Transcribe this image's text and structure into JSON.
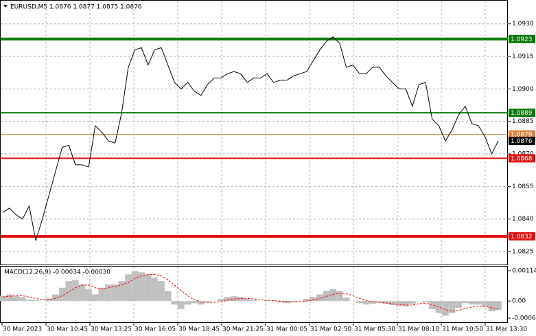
{
  "chart_data": [
    {
      "type": "line",
      "title": "EURUSD,M5  1.0876 1.0877 1.0875 1.0876",
      "color": "#000000",
      "values": [
        1.0843,
        1.0845,
        1.0842,
        1.084,
        1.0846,
        1.083,
        1.084,
        1.0851,
        1.0862,
        1.0873,
        1.0874,
        1.0865,
        1.0865,
        1.0864,
        1.0883,
        1.088,
        1.0876,
        1.0875,
        1.0889,
        1.091,
        1.0918,
        1.0919,
        1.0911,
        1.0918,
        1.0919,
        1.0911,
        1.0903,
        1.09,
        1.0903,
        1.0899,
        1.0897,
        1.0902,
        1.0905,
        1.0905,
        1.0907,
        1.0908,
        1.0907,
        1.0903,
        1.0905,
        1.0905,
        1.0907,
        1.0903,
        1.0904,
        1.0904,
        1.0906,
        1.0907,
        1.0908,
        1.0913,
        1.0918,
        1.0922,
        1.0924,
        1.0921,
        1.091,
        1.0911,
        1.0907,
        1.0907,
        1.091,
        1.091,
        1.0906,
        1.0903,
        1.09,
        1.09,
        1.0892,
        1.0902,
        1.0903,
        1.0886,
        1.0883,
        1.0876,
        1.0881,
        1.0888,
        1.0892,
        1.0884,
        1.0883,
        1.0878,
        1.087,
        1.0876
      ],
      "ylim": [
        1.0819,
        1.0941
      ],
      "yticks": [
        {
          "value": 1.093,
          "label": "1.0930"
        },
        1.0915,
        {
          "value": 1.09,
          "label": "1.0900"
        },
        1.0885,
        {
          "value": 1.087,
          "label": "1.0870"
        },
        1.0855,
        {
          "value": 1.084,
          "label": "1.0840"
        },
        1.0825
      ],
      "grid": true,
      "levels": [
        {
          "value": 1.0923,
          "color": "#0b7a0b",
          "width": 4
        },
        {
          "value": 1.0889,
          "color": "#0b7a0b",
          "width": 2
        },
        {
          "value": 1.0879,
          "color": "#e0803c",
          "width": 1
        },
        {
          "value": 1.0868,
          "color": "#e01010",
          "width": 2
        },
        {
          "value": 1.0832,
          "color": "#e01010",
          "width": 4
        }
      ],
      "last_price": 1.0876
    },
    {
      "type": "bar",
      "title": "MACD(12,26,9) -0.00034 -0.00030",
      "series": [
        {
          "color": "#c0c0c0",
          "values": [
            0.0002,
            0.00025,
            0.0002,
            0.00015,
            5e-05,
            3e-05,
            0,
            0.0001,
            0.00025,
            0.0005,
            0.00075,
            0.0008,
            0.00063,
            0.00045,
            0.00025,
            0.0005,
            0.00063,
            0.00063,
            0.00075,
            0.001,
            0.00113,
            0.00108,
            0.001,
            0.00088,
            0.00075,
            0.00038,
            -0.00013,
            -0.0003,
            -0.00013,
            -8e-05,
            -0.00013,
            -5e-05,
            0,
            8e-05,
            0.00015,
            0.00018,
            0.00015,
            8e-05,
            3e-05,
            0,
            3e-05,
            0,
            -5e-05,
            -8e-05,
            -5e-05,
            0,
            8e-05,
            0.00015,
            0.00025,
            0.00038,
            0.00045,
            0.00038,
            0.00013,
            0,
            -8e-05,
            -0.00013,
            -0.0001,
            -5e-05,
            -0.0001,
            -0.00015,
            -0.0002,
            -0.0002,
            -0.0001,
            0,
            -5e-05,
            -0.0003,
            -0.00045,
            -0.00055,
            -0.00045,
            -0.00025,
            -8e-05,
            -0.00013,
            -0.00013,
            -0.0002,
            -0.00038,
            -0.00034
          ]
        },
        {
          "color": "#ff0000",
          "type": "line",
          "values": [
            0.00015,
            0.00018,
            0.0002,
            0.0002,
            0.00015,
            0.0001,
            5e-05,
            5e-05,
            0.0001,
            0.0002,
            0.00035,
            0.0005,
            0.0006,
            0.0006,
            0.0005,
            0.00045,
            0.0005,
            0.00055,
            0.0006,
            0.0007,
            0.00085,
            0.00095,
            0.001,
            0.001,
            0.00095,
            0.0008,
            0.0006,
            0.0004,
            0.0002,
            5e-05,
            -3e-05,
            -5e-05,
            -5e-05,
            -3e-05,
            3e-05,
            8e-05,
            0.0001,
            0.0001,
            8e-05,
            5e-05,
            3e-05,
            2e-05,
            0,
            -2e-05,
            -3e-05,
            -2e-05,
            0,
            5e-05,
            0.0001,
            0.00018,
            0.00025,
            0.0003,
            0.00028,
            0.0002,
            0.0001,
            3e-05,
            -3e-05,
            -5e-05,
            -7e-05,
            -0.0001,
            -0.00013,
            -0.00015,
            -0.00015,
            -0.0001,
            -8e-05,
            -0.00013,
            -0.00022,
            -0.00032,
            -0.00038,
            -0.00035,
            -0.00028,
            -0.00022,
            -0.00018,
            -0.0002,
            -0.00025,
            -0.0003
          ]
        }
      ],
      "ylim": [
        -0.00082,
        0.00132
      ],
      "yticks": [
        0.00114,
        {
          "value": 0,
          "label": "0.00"
        },
        -0.00064
      ],
      "x_labels": [
        "30 Mar 2023",
        "30 Mar 10:45",
        "30 Mar 13:25",
        "30 Mar 16:05",
        "30 Mar 18:45",
        "30 Mar 21:25",
        "31 Mar 00:05",
        "31 Mar 02:50",
        "31 Mar 05:30",
        "31 Mar 08:10",
        "31 Mar 10:50",
        "31 Mar 13:30"
      ]
    }
  ]
}
